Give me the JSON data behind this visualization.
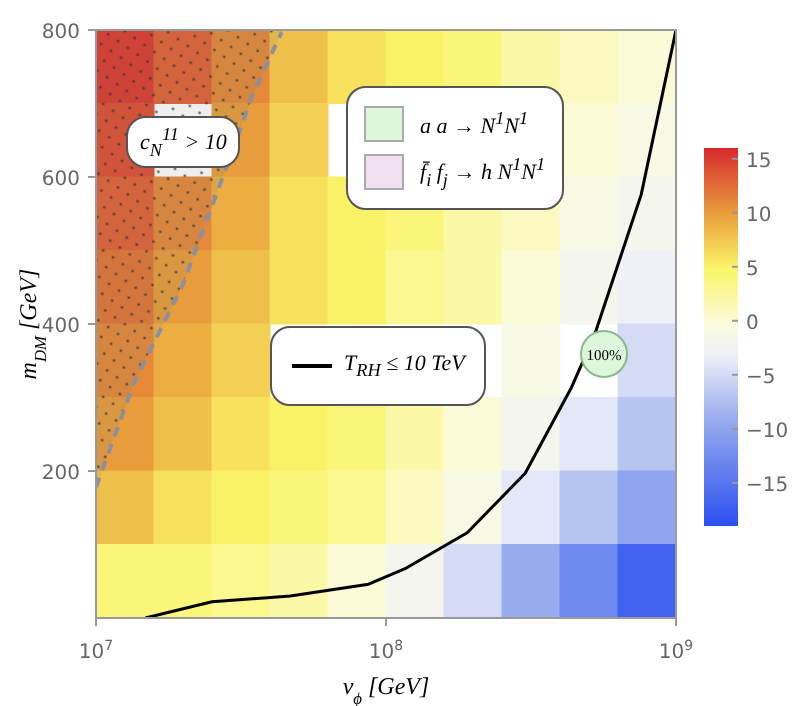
{
  "chart_data": {
    "type": "heatmap",
    "xlabel": "v$_{ϕ}$  [GeV]",
    "ylabel": "m$_{DM}$  [GeV]",
    "x": [
      12589254,
      19952623,
      31622777,
      50118723,
      79432823,
      125892541,
      199526231,
      316227766,
      501187234,
      794328235
    ],
    "cells": [
      [
        15,
        13,
        11,
        8,
        6,
        5,
        4,
        2,
        1,
        0
      ],
      [
        14,
        null,
        10,
        7,
        null,
        null,
        null,
        null,
        0,
        -1
      ],
      [
        13,
        11,
        9,
        6,
        5,
        4,
        2,
        1,
        -1,
        -2
      ],
      [
        12,
        10,
        8,
        6,
        5,
        3,
        2,
        0,
        -2,
        -3
      ],
      [
        11,
        9,
        7,
        null,
        null,
        null,
        null,
        -1,
        null,
        -5
      ],
      [
        10,
        8,
        6,
        5,
        4,
        2,
        0,
        -2,
        -4,
        -7
      ],
      [
        8,
        6,
        5,
        4,
        3,
        1,
        -1,
        -4,
        -7,
        -10
      ],
      [
        4,
        4,
        3,
        2,
        0,
        -2,
        -5,
        -9,
        -13,
        -17
      ]
    ],
    "clim": [
      -19,
      16
    ],
    "cticks": [
      15,
      10,
      5,
      0,
      -5,
      -10,
      -15
    ],
    "log": "x",
    "xlim": [
      10000000,
      1000000000
    ],
    "xticks": [
      {
        "value": 10000000,
        "label": "10$^{7}$"
      },
      {
        "value": 100000000,
        "label": "10$^{8}$"
      },
      {
        "value": 1000000000,
        "label": "10$^{9}$"
      }
    ],
    "ylim": [
      0,
      800
    ],
    "yticks": [
      200,
      400,
      600,
      800
    ],
    "series": [
      {
        "type": "line",
        "line_style": "dashed",
        "color": "#8c8fa0",
        "x": [
          10000000,
          13489629,
          19952623,
          27542287,
          34673685,
          43651583
        ],
        "values": [
          178,
          319,
          454,
          603,
          711,
          797
        ],
        "lower": [
          178,
          319,
          454,
          603,
          711,
          797
        ],
        "upper": [
          800,
          800,
          800,
          800,
          800,
          800
        ]
      },
      {
        "type": "line",
        "name": "T$_{RH}$ ≤ 10 TeV",
        "color": "#000000",
        "x": [
          14791084,
          25118864,
          46773514,
          87096359,
          117489755,
          190546072,
          301995172,
          436515832,
          524807460,
          758577575,
          1000000000
        ],
        "values": [
          0,
          22,
          30,
          46,
          68,
          116,
          197,
          314,
          386,
          576,
          800
        ]
      }
    ],
    "legend": "center",
    "annotations": [
      "c$_{N}$$^{11}$ > 10",
      "a a → N$^{1}$N$^{1}$",
      "f̄$_{i}$ f$_{j}$ → h N$^{1}$N$^{1}$",
      "100%"
    ]
  }
}
